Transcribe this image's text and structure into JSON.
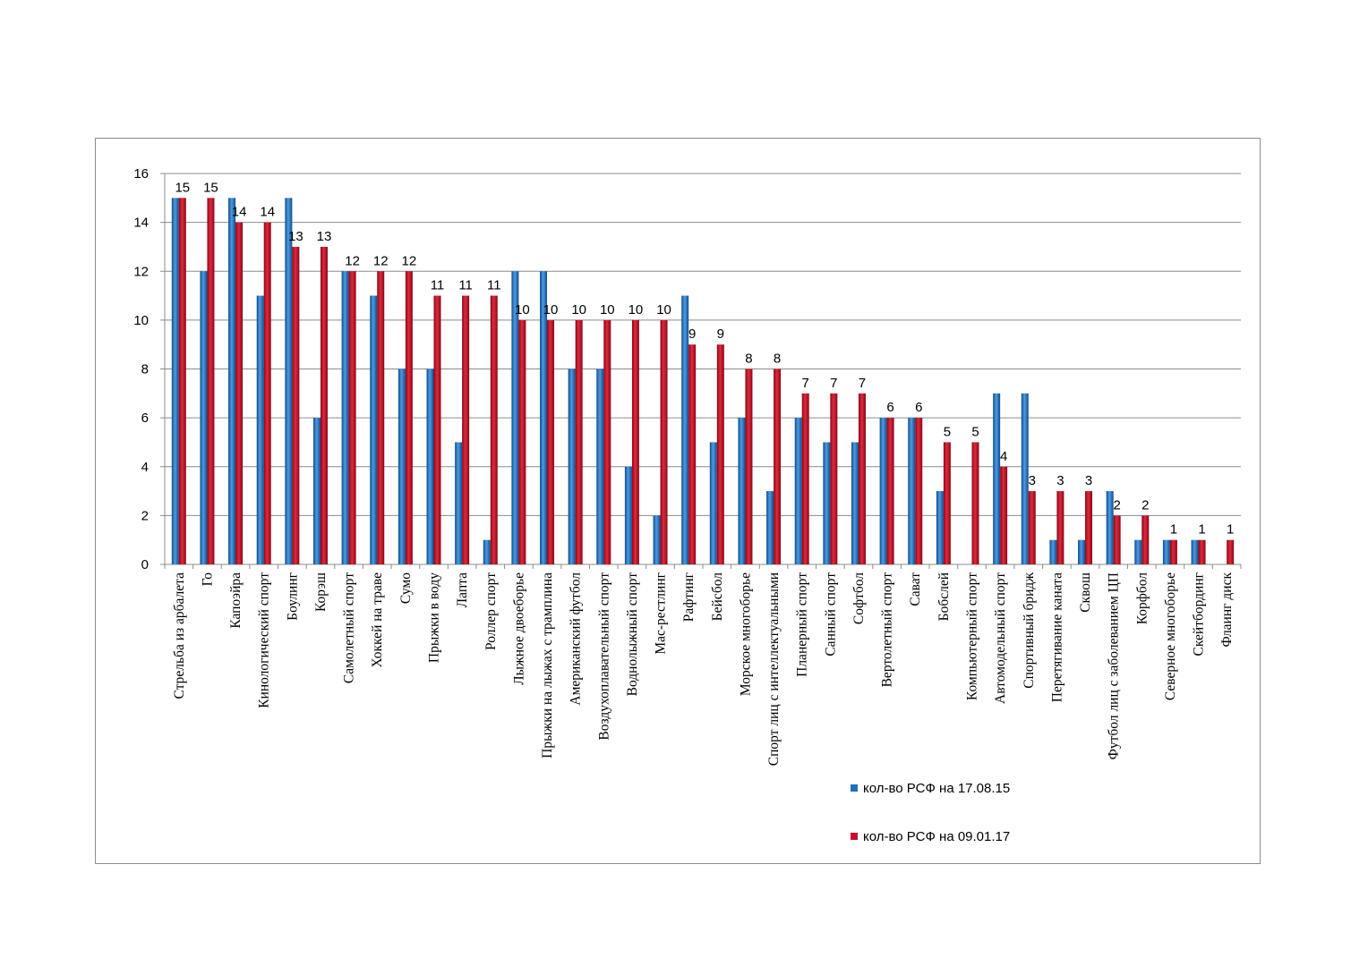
{
  "chart_data": {
    "type": "bar",
    "categories": [
      "Стрельба из арбалета",
      "Го",
      "Капоэйра",
      "Кинологический спорт",
      "Боулинг",
      "Корэш",
      "Самолетный спорт",
      "Хоккей на траве",
      "Сумо",
      "Прыжки в воду",
      "Лапта",
      "Роллер спорт",
      "Лыжное двоеборье",
      "Прыжки на лыжах с трамплина",
      "Американский футбол",
      "Воздухоплавательный спорт",
      "Воднолыжный спорт",
      "Мас-рестлинг",
      "Рафтинг",
      "Бейсбол",
      "Морское многоборье",
      "Спорт лиц с интеллектуальными",
      "Планерный спорт",
      "Санный спорт",
      "Софтбол",
      "Вертолетный спорт",
      "Сават",
      "Бобслей",
      "Компьютерный спорт",
      "Автомодельный спорт",
      "Спортивный бридж",
      "Перетягивание каната",
      "Сквош",
      "Футбол лиц с заболеванием ЦП",
      "Корфбол",
      "Северное многоборье",
      "Скейтбординг",
      "Флаинг диск"
    ],
    "series": [
      {
        "name": "кол-во РСФ на 17.08.15",
        "color": "#1f6fbd",
        "values": [
          15,
          12,
          15,
          11,
          15,
          6,
          12,
          11,
          8,
          8,
          5,
          1,
          12,
          12,
          8,
          8,
          4,
          2,
          11,
          5,
          6,
          3,
          6,
          5,
          5,
          6,
          6,
          3,
          0,
          7,
          7,
          1,
          1,
          3,
          1,
          1,
          1,
          0
        ]
      },
      {
        "name": "кол-во РСФ на 09.01.17",
        "color": "#c8102e",
        "values": [
          15,
          15,
          14,
          14,
          13,
          13,
          12,
          12,
          12,
          11,
          11,
          11,
          10,
          10,
          10,
          10,
          10,
          10,
          9,
          9,
          8,
          8,
          7,
          7,
          7,
          6,
          6,
          5,
          5,
          4,
          3,
          3,
          3,
          2,
          2,
          1,
          1,
          1
        ]
      }
    ],
    "data_labels_series": 1,
    "ylim": [
      0,
      16
    ],
    "yticks": [
      0,
      2,
      4,
      6,
      8,
      10,
      12,
      14,
      16
    ],
    "grid": true,
    "legend": "bottom-right",
    "title": "",
    "xlabel": "",
    "ylabel": ""
  }
}
